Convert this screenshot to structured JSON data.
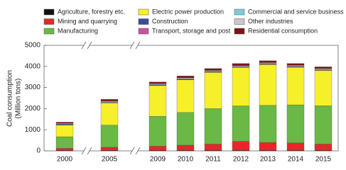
{
  "chart_data": {
    "type": "stacked_bar",
    "y_label": [
      "Coal consumption",
      "(Million tons)"
    ],
    "categories": [
      "2000",
      "2005",
      "2009",
      "2010",
      "2011",
      "2012",
      "2013",
      "2014",
      "2015"
    ],
    "ylim": [
      0,
      5000
    ],
    "yticks": [
      0,
      1000,
      2000,
      3000,
      4000,
      5000
    ],
    "series": [
      {
        "name": "Agriculture, forestry etc.",
        "color": "#111111",
        "values": [
          20,
          20,
          20,
          20,
          20,
          20,
          20,
          20,
          20
        ]
      },
      {
        "name": "Mining and quarrying",
        "color": "#e8262a",
        "values": [
          100,
          150,
          200,
          250,
          300,
          430,
          380,
          360,
          300
        ]
      },
      {
        "name": "Manufacturing",
        "color": "#6ab845",
        "values": [
          550,
          1050,
          1420,
          1550,
          1680,
          1680,
          1760,
          1800,
          1820
        ]
      },
      {
        "name": "Electric power production",
        "color": "#f6f02a",
        "values": [
          550,
          1050,
          1450,
          1550,
          1720,
          1820,
          1930,
          1780,
          1670
        ]
      },
      {
        "name": "Construction",
        "color": "#3b4a9c",
        "values": [
          10,
          10,
          10,
          10,
          10,
          10,
          10,
          10,
          10
        ]
      },
      {
        "name": "Transport, storage and post",
        "color": "#c655a0",
        "values": [
          20,
          20,
          20,
          20,
          20,
          20,
          20,
          20,
          20
        ]
      },
      {
        "name": "Commercial and service business",
        "color": "#7fcbe0",
        "values": [
          20,
          20,
          20,
          20,
          20,
          20,
          20,
          20,
          20
        ]
      },
      {
        "name": "Other industries",
        "color": "#c8c8c8",
        "values": [
          30,
          40,
          40,
          40,
          40,
          40,
          40,
          40,
          40
        ]
      },
      {
        "name": "Residential consumption",
        "color": "#7a1418",
        "values": [
          60,
          80,
          80,
          90,
          90,
          100,
          90,
          90,
          80
        ]
      }
    ]
  }
}
